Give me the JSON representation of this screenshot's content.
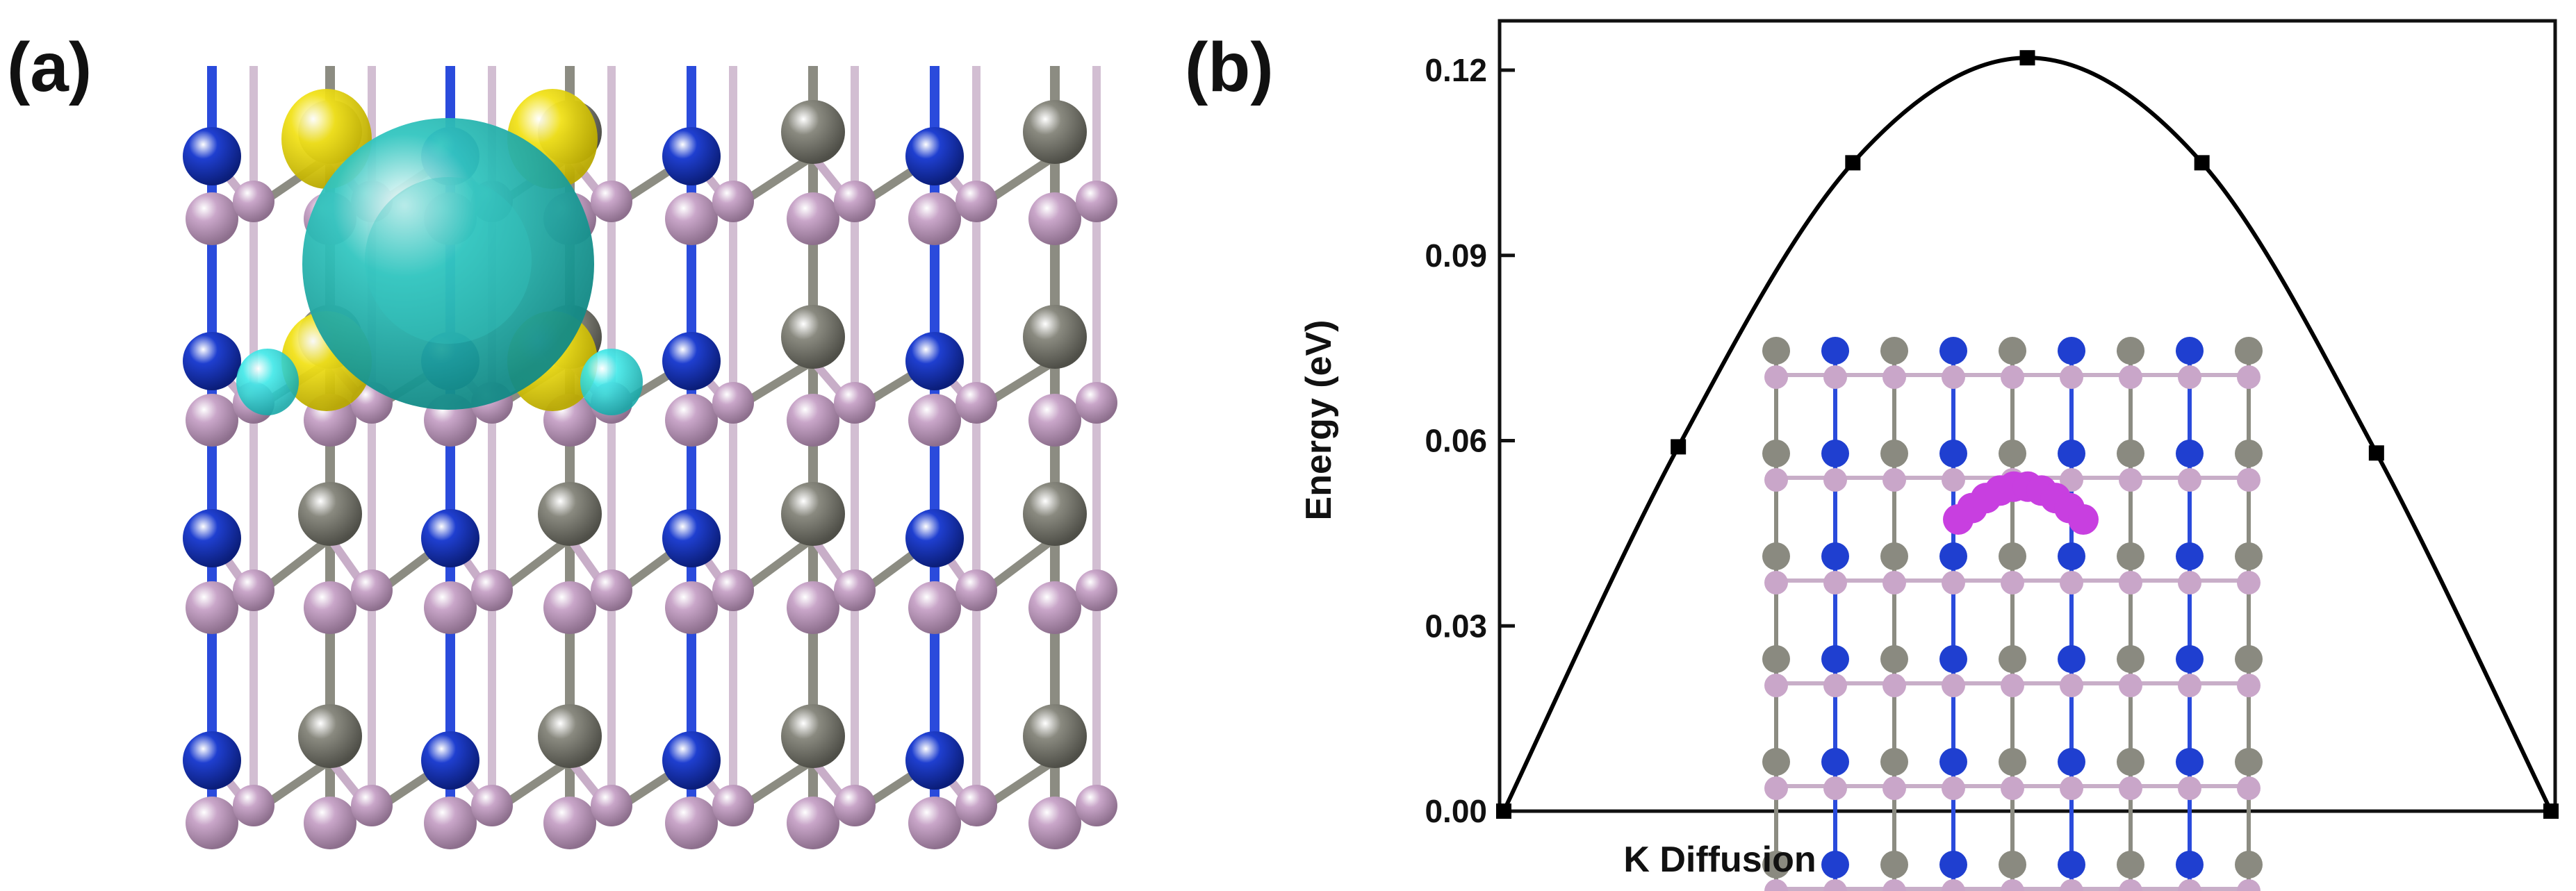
{
  "panels": {
    "a_label": "(a)",
    "b_label": "(b)"
  },
  "structure": {
    "colors": {
      "blue_atom": "#1f3fd0",
      "gray_atom": "#8a8a80",
      "pink_atom": "#c9a6c9",
      "bond_gray": "#8c8c82",
      "bond_pink": "#c8aec8",
      "bond_blue": "#2a4bdc",
      "k_atom": "#33c6c0",
      "charge_yellow": "#f2e21a",
      "charge_cyan": "#3fe8e8",
      "path_magenta": "#c83fe0"
    }
  },
  "chart_data": {
    "type": "line",
    "title": "",
    "xlabel": "K Diffusion",
    "ylabel": "Energy (eV)",
    "ylim": [
      0.0,
      0.13
    ],
    "yticks": [
      "0.00",
      "0.03",
      "0.06",
      "0.09",
      "0.12"
    ],
    "ytick_values": [
      0.0,
      0.03,
      0.06,
      0.09,
      0.12
    ],
    "grid": false,
    "x": [
      0,
      1,
      2,
      3,
      4,
      5,
      6
    ],
    "series": [
      {
        "values": [
          0.0,
          0.059,
          0.105,
          0.122,
          0.105,
          0.058,
          0.0
        ],
        "color": "#000000",
        "markers": "square"
      }
    ]
  }
}
